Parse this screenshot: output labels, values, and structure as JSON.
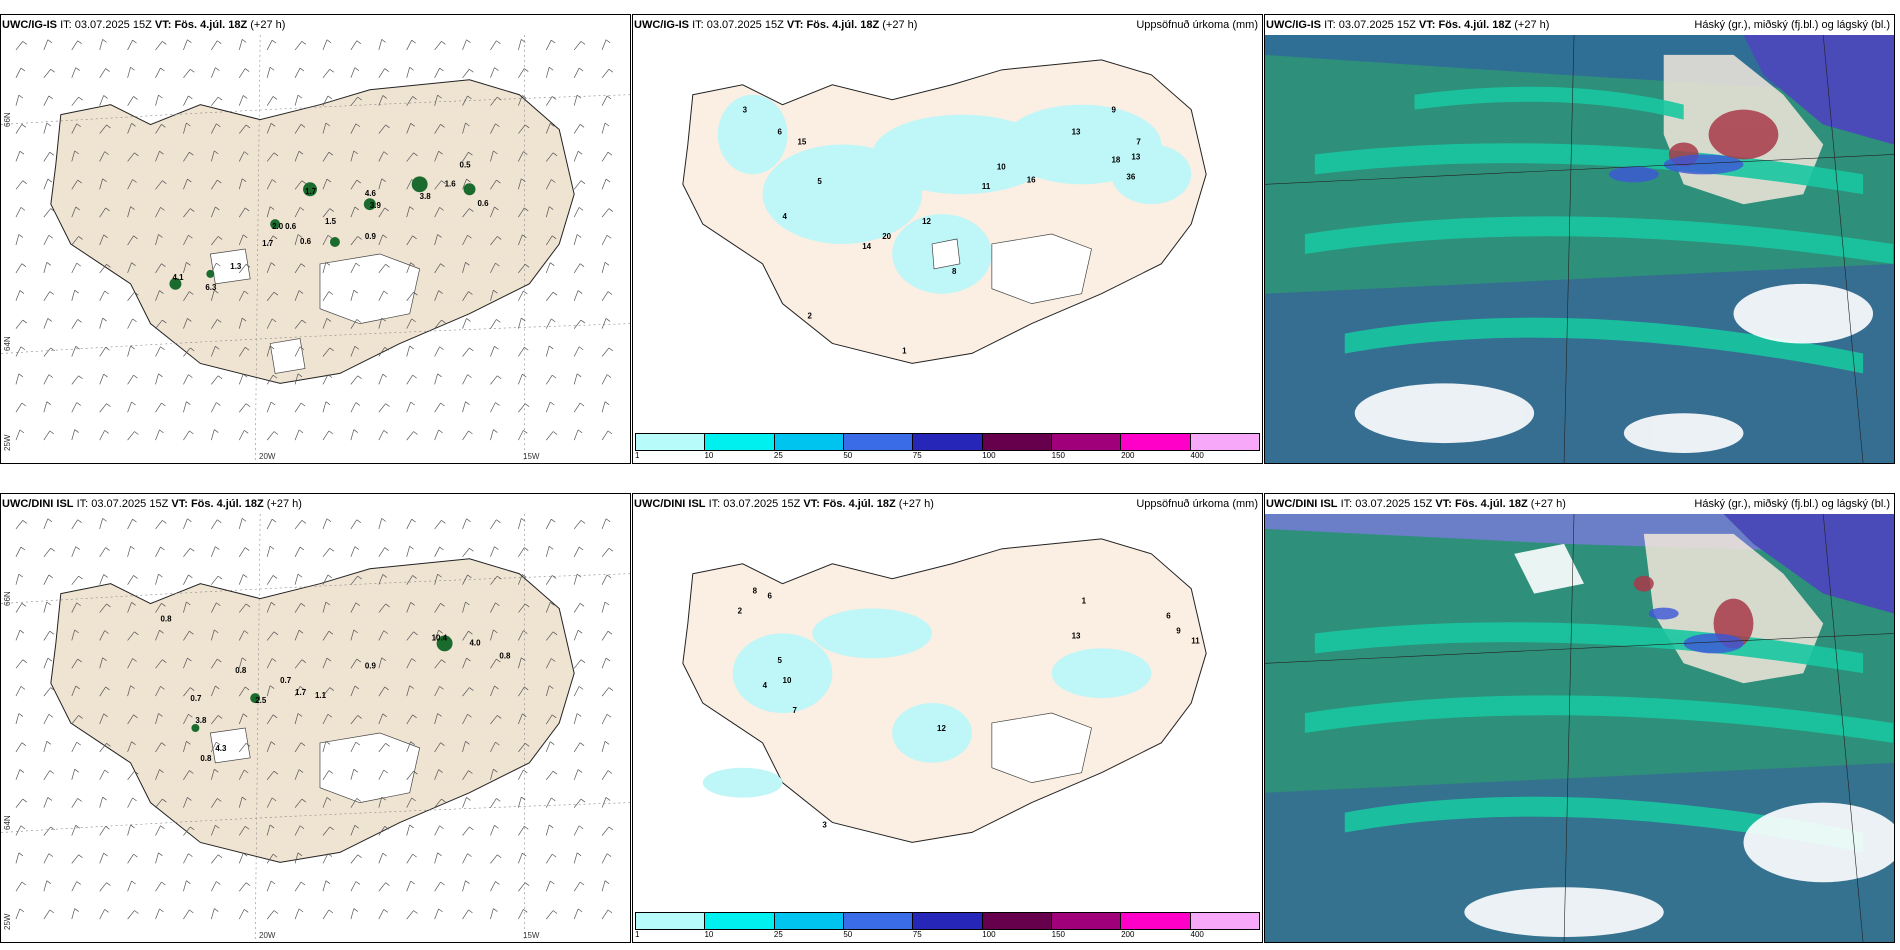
{
  "common": {
    "it_label": "IT:",
    "it_value": "03.07.2025 15Z",
    "vt_label": "VT:",
    "vt_value": "Fös. 4.júl. 18Z",
    "lead": "(+27 h)"
  },
  "rows": [
    {
      "model": "UWC/IG-IS",
      "wind_labels": [
        {
          "text": "0.5"
        },
        {
          "text": "1.7"
        },
        {
          "text": "4.6"
        },
        {
          "text": "3.9"
        },
        {
          "text": "3.8"
        },
        {
          "text": "1.6"
        },
        {
          "text": "0.6"
        },
        {
          "text": "2.0"
        },
        {
          "text": "0.6"
        },
        {
          "text": "1.5"
        },
        {
          "text": "0.9"
        },
        {
          "text": "0.6"
        },
        {
          "text": "1.7"
        },
        {
          "text": "1.3"
        },
        {
          "text": "4.1"
        },
        {
          "text": "6.3"
        }
      ],
      "precip_labels": [
        {
          "text": "3"
        },
        {
          "text": "6"
        },
        {
          "text": "15"
        },
        {
          "text": "9"
        },
        {
          "text": "13"
        },
        {
          "text": "7"
        },
        {
          "text": "10"
        },
        {
          "text": "18"
        },
        {
          "text": "13"
        },
        {
          "text": "12"
        },
        {
          "text": "20"
        },
        {
          "text": "14"
        },
        {
          "text": "8"
        },
        {
          "text": "5"
        },
        {
          "text": "11"
        },
        {
          "text": "16"
        },
        {
          "text": "36"
        },
        {
          "text": "4"
        },
        {
          "text": "2"
        },
        {
          "text": "1"
        }
      ]
    },
    {
      "model": "UWC/DINI ISL",
      "wind_labels": [
        {
          "text": "0.8"
        },
        {
          "text": "0.8"
        },
        {
          "text": "0.7"
        },
        {
          "text": "1.7"
        },
        {
          "text": "1.1"
        },
        {
          "text": "0.9"
        },
        {
          "text": "10.4"
        },
        {
          "text": "4.0"
        },
        {
          "text": "0.8"
        },
        {
          "text": "0.7"
        },
        {
          "text": "3.8"
        },
        {
          "text": "4.3"
        },
        {
          "text": "0.8"
        },
        {
          "text": "2.5"
        }
      ],
      "precip_labels": [
        {
          "text": "8"
        },
        {
          "text": "6"
        },
        {
          "text": "2"
        },
        {
          "text": "5"
        },
        {
          "text": "4"
        },
        {
          "text": "10"
        },
        {
          "text": "7"
        },
        {
          "text": "12"
        },
        {
          "text": "13"
        },
        {
          "text": "3"
        },
        {
          "text": "1"
        },
        {
          "text": "11"
        },
        {
          "text": "9"
        },
        {
          "text": "6"
        }
      ]
    }
  ],
  "precip_title": "Uppsöfnuð úrkoma (mm)",
  "cloud_title": "Háský (gr.), miðský (fj.bl.) og lágský (bl.)",
  "axis": {
    "lon_20w": "20W",
    "lon_15w": "15W",
    "lon_25w": "25W",
    "lat_66n": "66N",
    "lat_64n": "64N"
  },
  "colorbar": {
    "colors": [
      "#b8fbfb",
      "#00f0f0",
      "#00c4f0",
      "#3a6ce8",
      "#2626b8",
      "#66004c",
      "#a0007a",
      "#ff00c8",
      "#f8a8f8"
    ],
    "ticks": [
      "1",
      "10",
      "25",
      "50",
      "75",
      "100",
      "150",
      "200",
      "400"
    ]
  },
  "palette": {
    "land": "#efe3d2",
    "land_precip": "#fbeee2",
    "precip_light": "#bff6f8",
    "cloud_high": "#2e8f7a",
    "cloud_mid": "#18c7a0",
    "cloud_low": "#3a5f9c"
  }
}
